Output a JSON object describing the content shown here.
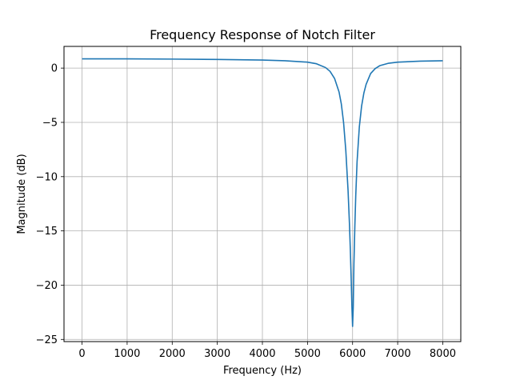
{
  "chart_data": {
    "type": "line",
    "title": "Frequency Response of Notch Filter",
    "xlabel": "Frequency (Hz)",
    "ylabel": "Magnitude (dB)",
    "xlim": [
      -400,
      8400
    ],
    "ylim": [
      -25.2,
      2.0
    ],
    "grid": true,
    "x_ticks": [
      0,
      1000,
      2000,
      3000,
      4000,
      5000,
      6000,
      7000,
      8000
    ],
    "x_tick_labels": [
      "0",
      "1000",
      "2000",
      "3000",
      "4000",
      "5000",
      "6000",
      "7000",
      "8000"
    ],
    "y_ticks": [
      0,
      -5,
      -10,
      -15,
      -20,
      -25
    ],
    "y_tick_labels": [
      "0",
      "−5",
      "−10",
      "−15",
      "−20",
      "−25"
    ],
    "series": [
      {
        "color": "#1f77b4",
        "x": [
          0,
          1000,
          2000,
          3000,
          4000,
          4500,
          5000,
          5200,
          5400,
          5500,
          5600,
          5700,
          5750,
          5800,
          5850,
          5900,
          5930,
          5950,
          5970,
          5985,
          6000,
          6015,
          6030,
          6050,
          6070,
          6100,
          6150,
          6200,
          6250,
          6300,
          6400,
          6500,
          6600,
          6800,
          7000,
          7500,
          8000
        ],
        "y": [
          0.85,
          0.85,
          0.83,
          0.8,
          0.74,
          0.68,
          0.55,
          0.4,
          0.05,
          -0.3,
          -0.95,
          -2.2,
          -3.3,
          -5.0,
          -7.6,
          -11.3,
          -14.3,
          -16.7,
          -19.6,
          -22.0,
          -23.8,
          -22.0,
          -18.0,
          -14.6,
          -11.8,
          -8.6,
          -5.4,
          -3.5,
          -2.3,
          -1.5,
          -0.5,
          -0.05,
          0.22,
          0.45,
          0.55,
          0.64,
          0.68
        ]
      }
    ]
  }
}
